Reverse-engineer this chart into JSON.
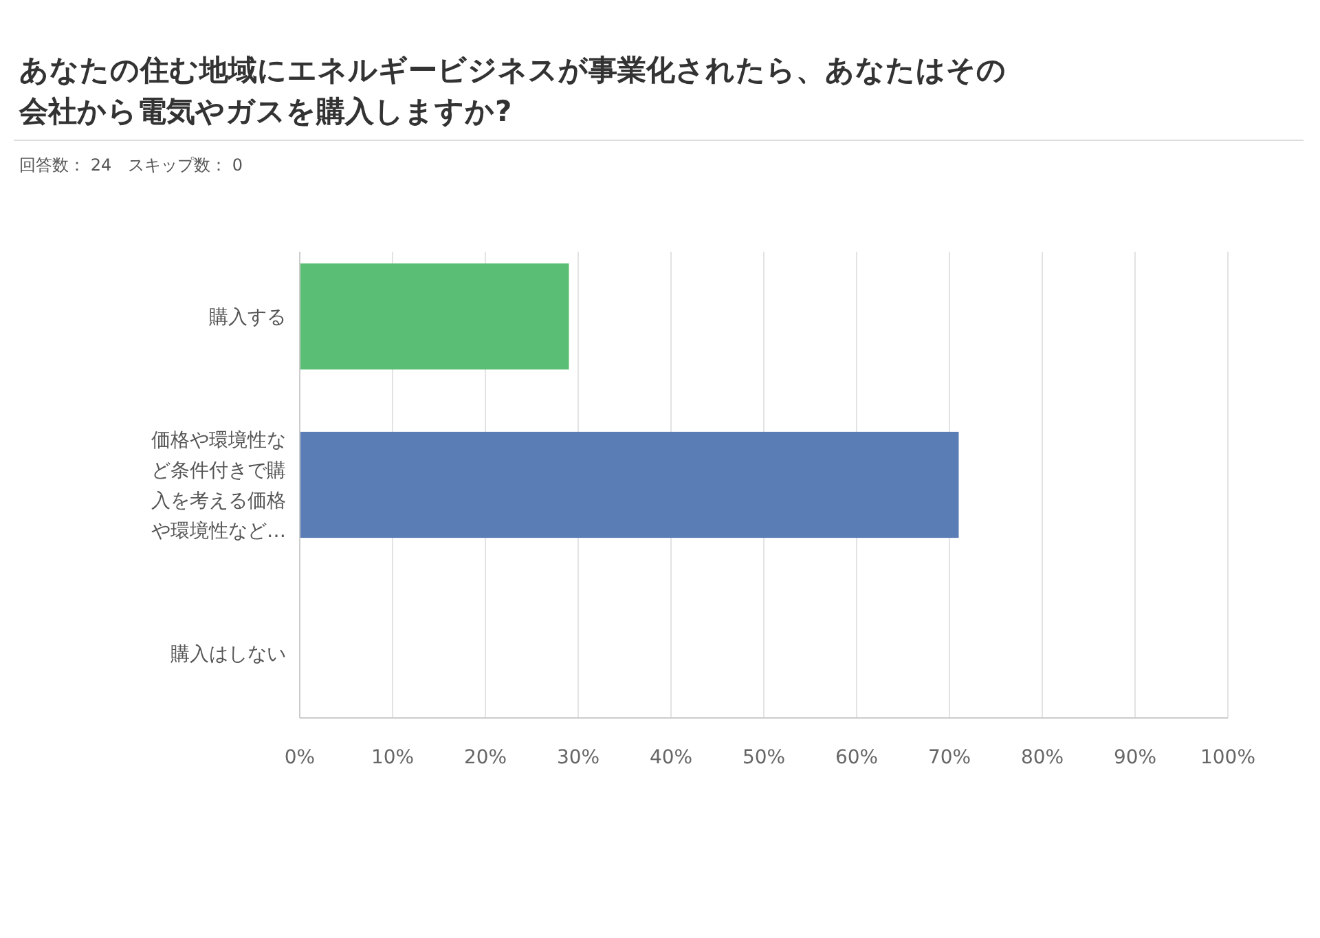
{
  "chart_data": {
    "type": "bar",
    "orientation": "horizontal",
    "title": "あなたの住む地域にエネルギービジネスが事業化されたら、あなたはその会社から電気やガスを購入しますか?",
    "subtitle": "回答数： 24　スキップ数： 0",
    "categories": [
      "購入する",
      "価格や環境性など条件付きで購入を考える価格や環境性など…",
      "購入はしない"
    ],
    "values": [
      29,
      71,
      0
    ],
    "colors": [
      "#5abe74",
      "#5a7db6",
      "#5a7db6"
    ],
    "xlim": [
      0,
      100
    ],
    "xticks": [
      {
        "value": 0,
        "label": "0%"
      },
      {
        "value": 10,
        "label": "10%"
      },
      {
        "value": 20,
        "label": "20%"
      },
      {
        "value": 30,
        "label": "30%"
      },
      {
        "value": 40,
        "label": "40%"
      },
      {
        "value": 50,
        "label": "50%"
      },
      {
        "value": 60,
        "label": "60%"
      },
      {
        "value": 70,
        "label": "70%"
      },
      {
        "value": 80,
        "label": "80%"
      },
      {
        "value": 90,
        "label": "90%"
      },
      {
        "value": 100,
        "label": "100%"
      }
    ],
    "grid": "x"
  }
}
